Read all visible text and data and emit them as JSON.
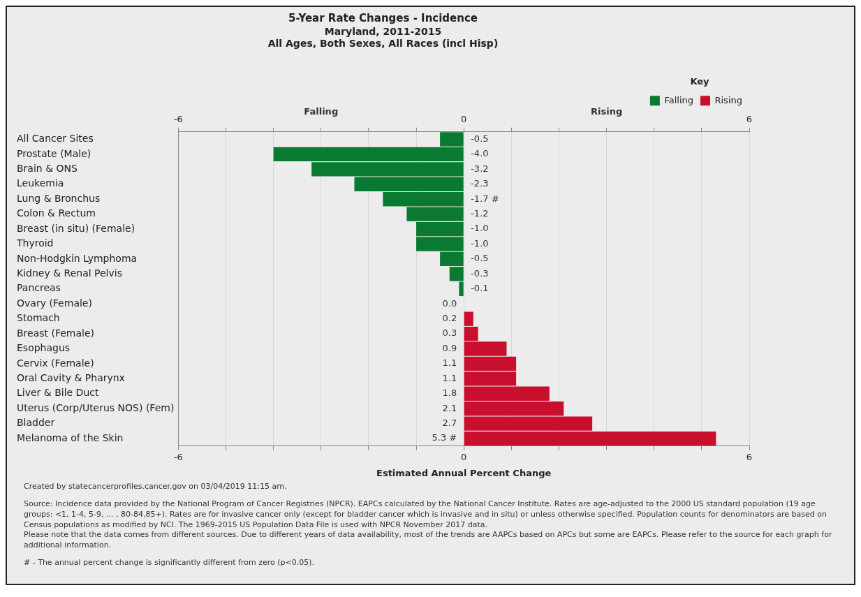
{
  "chart_data": {
    "type": "bar",
    "orientation": "horizontal",
    "title": "5-Year Rate Changes - Incidence",
    "subtitle": "Maryland, 2011-2015\nAll Ages, Both Sexes, All Races (incl Hisp)",
    "xlabel": "Estimated Annual Percent Change",
    "legend_title": "Key",
    "legend": "top right",
    "grid": "x",
    "categories": [
      "All Cancer Sites",
      "Prostate (Male)",
      "Brain & ONS",
      "Leukemia",
      "Lung & Bronchus",
      "Colon & Rectum",
      "Breast (in situ) (Female)",
      "Thyroid",
      "Non-Hodgkin Lymphoma",
      "Kidney & Renal Pelvis",
      "Pancreas",
      "Ovary (Female)",
      "Stomach",
      "Breast (Female)",
      "Esophagus",
      "Cervix (Female)",
      "Oral Cavity & Pharynx",
      "Liver & Bile Duct",
      "Uterus (Corp/Uterus NOS) (Fem)",
      "Bladder",
      "Melanoma of the Skin"
    ],
    "series": [
      {
        "name": "Falling",
        "color": "#0a7a32",
        "values": [
          -0.5,
          -4.0,
          -3.2,
          -2.3,
          -1.7,
          -1.2,
          -1.0,
          -1.0,
          -0.5,
          -0.3,
          -0.1,
          null,
          null,
          null,
          null,
          null,
          null,
          null,
          null,
          null,
          null
        ],
        "value_labels": [
          "-0.5",
          "-4.0",
          "-3.2",
          "-2.3",
          "-1.7 #",
          "-1.2",
          "-1.0",
          "-1.0",
          "-0.5",
          "-0.3",
          "-0.1",
          null,
          null,
          null,
          null,
          null,
          null,
          null,
          null,
          null,
          null
        ]
      },
      {
        "name": "Rising",
        "color": "#c8102e",
        "values": [
          null,
          null,
          null,
          null,
          null,
          null,
          null,
          null,
          null,
          null,
          null,
          0.0,
          0.2,
          0.3,
          0.9,
          1.1,
          1.1,
          1.8,
          2.1,
          2.7,
          5.3
        ],
        "value_labels": [
          null,
          null,
          null,
          null,
          null,
          null,
          null,
          null,
          null,
          null,
          null,
          "0.0",
          "0.2",
          "0.3",
          "0.9",
          "1.1",
          "1.1",
          "1.8",
          "2.1",
          "2.7",
          "5.3 #"
        ]
      }
    ],
    "xlim": [
      -6,
      6
    ],
    "xticks": [
      -6,
      {
        "value": -5,
        "label": null
      },
      {
        "value": -4,
        "label": null
      },
      {
        "value": -3,
        "label": null
      },
      {
        "value": -2,
        "label": null
      },
      {
        "value": -1,
        "label": null
      },
      0,
      {
        "value": 1,
        "label": null
      },
      {
        "value": 2,
        "label": null
      },
      {
        "value": 3,
        "label": null
      },
      {
        "value": 4,
        "label": null
      },
      {
        "value": 5,
        "label": null
      },
      6
    ],
    "x2lim": [
      -6,
      6
    ],
    "x2ticks": [
      -6,
      {
        "value": -5,
        "label": null
      },
      {
        "value": -4,
        "label": null
      },
      {
        "value": -3,
        "label": null
      },
      {
        "value": -2,
        "label": null
      },
      {
        "value": -1,
        "label": null
      },
      0,
      {
        "value": 1,
        "label": null
      },
      {
        "value": 2,
        "label": null
      },
      {
        "value": 3,
        "label": null
      },
      {
        "value": 4,
        "label": null
      },
      {
        "value": 5,
        "label": null
      },
      6
    ],
    "annotations": [
      "Falling",
      "Rising",
      "Created by statecancerprofiles.cancer.gov on 03/04/2019 11:15 am.",
      "Source: Incidence data provided by the National Program of Cancer Registries (NPCR). EAPCs calculated by the National Cancer Institute. Rates are age-adjusted to the 2000 US standard population (19 age groups: <1, 1-4, 5-9, ... , 80-84,85+). Rates are for invasive cancer only (except for bladder cancer which is invasive and in situ) or unless otherwise specified. Population counts for denominators are based on Census populations as modified by NCI. The 1969-2015 US Population Data File is used with NPCR November 2017 data.\nPlease note that the data comes from different sources. Due to different years of data availability, most of the trends are AAPCs based on APCs but some are EAPCs. Please refer to the source for each graph for additional information.",
      "# - The annual percent change is significantly different from zero (p<0.05)."
    ]
  }
}
